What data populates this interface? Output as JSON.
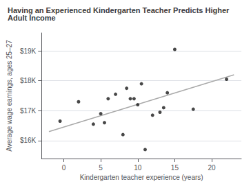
{
  "chart_data": {
    "type": "scatter",
    "title": "Having an Experienced Kindergarten Teacher Predicts Higher Adult Income",
    "xlabel": "Kindergarten teacher experience (years)",
    "ylabel": "Average wage earnings, ages 25–27",
    "series": [
      {
        "type": "line",
        "color": "#aaaaaa",
        "x": [
          -2,
          23
        ],
        "values": [
          16300,
          18200
        ]
      },
      {
        "type": "scatter",
        "color": "#1a1a1a",
        "x": [
          -0.5,
          2,
          4,
          5,
          5.5,
          6,
          7,
          8,
          8.5,
          9,
          9.5,
          10,
          10.5,
          11,
          12,
          13,
          13.5,
          14,
          15,
          17.5,
          22
        ],
        "values": [
          16650,
          17300,
          16550,
          16900,
          16600,
          17400,
          17550,
          16200,
          17750,
          17400,
          17400,
          17200,
          17900,
          15700,
          16850,
          16950,
          17100,
          17600,
          19050,
          17050,
          18050
        ]
      }
    ],
    "xlim": [
      -3,
      24
    ],
    "xticks": [
      0,
      5,
      10,
      15,
      20
    ],
    "ylim": [
      15400,
      19600
    ],
    "yticks": [
      {
        "value": 16000,
        "label": "$16K"
      },
      {
        "value": 17000,
        "label": "$17K"
      },
      {
        "value": 18000,
        "label": "$18K"
      },
      {
        "value": 19000,
        "label": "$19K"
      }
    ],
    "grid": "y"
  }
}
